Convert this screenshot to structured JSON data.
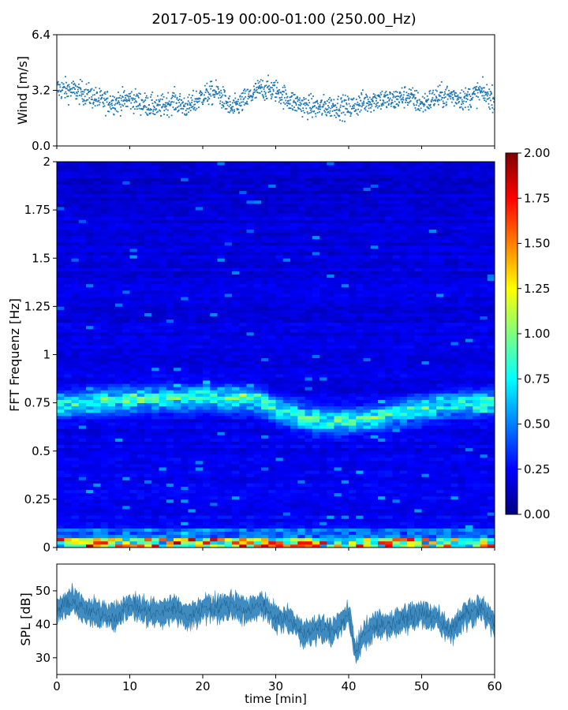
{
  "title": "2017-05-19 00:00-01:00 (250.00_Hz)",
  "chart_data": [
    {
      "type": "scatter",
      "ylabel": "Wind [m/s]",
      "xlim": [
        0,
        60
      ],
      "ylim": [
        0,
        6.4
      ],
      "yticks": [
        0.0,
        3.2,
        6.4
      ],
      "ytick_labels": [
        "0.0",
        "3.2",
        "6.4"
      ],
      "series_color": "#1f77b4",
      "x_ticks_shown_without_labels": [
        0,
        10,
        20,
        30,
        40,
        50,
        60
      ],
      "profile": {
        "x": [
          0,
          2,
          4,
          6,
          8,
          10,
          12,
          14,
          16,
          18,
          20,
          22,
          24,
          26,
          28,
          30,
          32,
          34,
          36,
          38,
          40,
          42,
          44,
          46,
          48,
          50,
          52,
          54,
          56,
          58,
          60
        ],
        "y": [
          3.3,
          3.2,
          3.0,
          2.6,
          2.5,
          2.7,
          2.4,
          2.2,
          2.6,
          2.2,
          2.9,
          3.1,
          2.1,
          2.7,
          3.3,
          3.2,
          2.6,
          2.3,
          2.2,
          2.3,
          2.2,
          2.5,
          2.7,
          2.6,
          2.9,
          2.4,
          2.8,
          2.9,
          2.7,
          3.1,
          2.7
        ]
      },
      "spread": 0.7,
      "point_count": 1500
    },
    {
      "type": "heatmap",
      "ylabel": "FFT Frequenz [Hz]",
      "xlim": [
        0,
        60
      ],
      "ylim": [
        0,
        2
      ],
      "yticks": [
        0,
        0.25,
        0.5,
        0.75,
        1,
        1.25,
        1.5,
        1.75,
        2
      ],
      "ytick_labels": [
        "0",
        "0.25",
        "0.5",
        "0.75",
        "1",
        "1.25",
        "1.5",
        "1.75",
        "2"
      ],
      "colormap": "jet",
      "colorbar": {
        "vmin": 0.0,
        "vmax": 2.0,
        "ticks": [
          0.0,
          0.25,
          0.5,
          0.75,
          1.0,
          1.25,
          1.5,
          1.75,
          2.0
        ],
        "tick_labels": [
          "0.00",
          "0.25",
          "0.50",
          "0.75",
          "1.00",
          "1.25",
          "1.50",
          "1.75",
          "2.00"
        ]
      },
      "time_bins": 60,
      "freq_bins": 120,
      "band": {
        "x": [
          0,
          10,
          20,
          27,
          30,
          35,
          40,
          45,
          50,
          55,
          60
        ],
        "center_hz": [
          0.74,
          0.77,
          0.78,
          0.77,
          0.72,
          0.66,
          0.66,
          0.68,
          0.72,
          0.75,
          0.75
        ],
        "amplitude": 0.7
      },
      "low_freq_amplitude": 1.4
    },
    {
      "type": "area",
      "ylabel": "SPL [dB]",
      "xlabel": "time [min]",
      "xlim": [
        0,
        60
      ],
      "ylim": [
        25,
        58
      ],
      "yticks": [
        30,
        40,
        50
      ],
      "ytick_labels": [
        "30",
        "40",
        "50"
      ],
      "xticks": [
        0,
        10,
        20,
        30,
        40,
        50,
        60
      ],
      "xtick_labels": [
        "0",
        "10",
        "20",
        "30",
        "40",
        "50",
        "60"
      ],
      "series_color": "#1f77b4",
      "profile": {
        "x": [
          0,
          2,
          4,
          6,
          8,
          10,
          12,
          14,
          16,
          18,
          20,
          22,
          24,
          26,
          28,
          30,
          32,
          34,
          36,
          38,
          40,
          41,
          42,
          44,
          46,
          48,
          50,
          52,
          54,
          56,
          58,
          60
        ],
        "y": [
          44,
          47,
          44,
          43,
          42,
          46,
          44,
          43,
          45,
          42,
          45,
          45,
          46,
          44,
          46,
          42,
          41,
          37,
          39,
          38,
          43,
          31,
          37,
          40,
          40,
          42,
          43,
          42,
          38,
          43,
          45,
          40
        ]
      },
      "spread": 3
    }
  ]
}
